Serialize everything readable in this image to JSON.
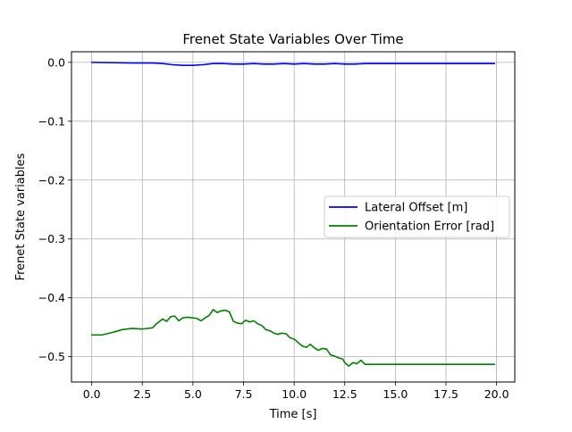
{
  "chart_data": {
    "type": "line",
    "title": "Frenet State Variables Over Time",
    "xlabel": "Time [s]",
    "ylabel": "Frenet State variables",
    "xlim": [
      -1.0,
      20.9
    ],
    "ylim": [
      -0.543,
      0.018
    ],
    "xticks": [
      0.0,
      2.5,
      5.0,
      7.5,
      10.0,
      12.5,
      15.0,
      17.5,
      20.0
    ],
    "xtick_labels": [
      "0.0",
      "2.5",
      "5.0",
      "7.5",
      "10.0",
      "12.5",
      "15.0",
      "17.5",
      "20.0"
    ],
    "yticks": [
      0.0,
      -0.1,
      -0.2,
      -0.3,
      -0.4,
      -0.5
    ],
    "ytick_labels": [
      "0.0",
      "−0.1",
      "−0.2",
      "−0.3",
      "−0.4",
      "−0.5"
    ],
    "grid": true,
    "legend_position": "center-right",
    "series": [
      {
        "name": "Lateral Offset [m]",
        "color": "#0000ff",
        "x": [
          0.0,
          1.0,
          2.0,
          3.0,
          3.5,
          4.0,
          4.5,
          5.0,
          5.5,
          6.0,
          6.5,
          7.0,
          7.5,
          8.0,
          8.5,
          9.0,
          9.5,
          10.0,
          10.5,
          11.0,
          11.5,
          12.0,
          12.5,
          13.0,
          13.5,
          14.0,
          15.0,
          16.0,
          17.0,
          18.0,
          19.0,
          19.9
        ],
        "y": [
          0.0,
          -0.0005,
          -0.001,
          -0.001,
          -0.002,
          -0.004,
          -0.005,
          -0.005,
          -0.004,
          -0.002,
          -0.002,
          -0.003,
          -0.003,
          -0.002,
          -0.003,
          -0.003,
          -0.002,
          -0.003,
          -0.002,
          -0.003,
          -0.003,
          -0.002,
          -0.003,
          -0.003,
          -0.002,
          -0.002,
          -0.002,
          -0.002,
          -0.002,
          -0.002,
          -0.002,
          -0.002
        ]
      },
      {
        "name": "Orientation Error [rad]",
        "color": "#008000",
        "x": [
          0.0,
          0.5,
          1.0,
          1.5,
          2.0,
          2.5,
          3.0,
          3.2,
          3.5,
          3.7,
          3.9,
          4.1,
          4.3,
          4.5,
          4.7,
          5.0,
          5.2,
          5.4,
          5.6,
          5.8,
          6.0,
          6.2,
          6.4,
          6.6,
          6.8,
          7.0,
          7.2,
          7.4,
          7.6,
          7.8,
          8.0,
          8.2,
          8.4,
          8.6,
          8.8,
          9.0,
          9.2,
          9.4,
          9.6,
          9.8,
          10.0,
          10.2,
          10.4,
          10.6,
          10.8,
          11.0,
          11.2,
          11.4,
          11.6,
          11.8,
          12.0,
          12.2,
          12.4,
          12.5,
          12.7,
          12.9,
          13.1,
          13.3,
          13.5,
          14.0,
          15.0,
          16.0,
          17.0,
          18.0,
          19.0,
          19.9
        ],
        "y": [
          -0.463,
          -0.463,
          -0.459,
          -0.454,
          -0.452,
          -0.453,
          -0.451,
          -0.444,
          -0.436,
          -0.44,
          -0.432,
          -0.431,
          -0.439,
          -0.434,
          -0.433,
          -0.434,
          -0.435,
          -0.439,
          -0.434,
          -0.43,
          -0.42,
          -0.425,
          -0.422,
          -0.421,
          -0.424,
          -0.44,
          -0.443,
          -0.444,
          -0.438,
          -0.441,
          -0.439,
          -0.444,
          -0.447,
          -0.454,
          -0.456,
          -0.46,
          -0.462,
          -0.46,
          -0.461,
          -0.468,
          -0.47,
          -0.476,
          -0.482,
          -0.484,
          -0.479,
          -0.485,
          -0.489,
          -0.486,
          -0.487,
          -0.497,
          -0.499,
          -0.502,
          -0.504,
          -0.51,
          -0.516,
          -0.51,
          -0.512,
          -0.506,
          -0.513,
          -0.513,
          -0.513,
          -0.513,
          -0.513,
          -0.513,
          -0.513,
          -0.513
        ]
      }
    ]
  }
}
